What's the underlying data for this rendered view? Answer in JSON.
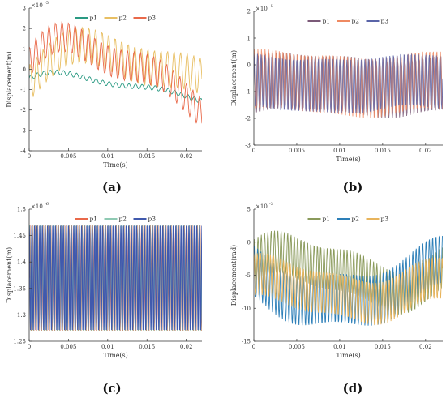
{
  "chart_data": [
    {
      "panel": "(a)",
      "type": "line",
      "caption": "(a)",
      "xlabel": "Time(s)",
      "ylabel": "Displacement(m)",
      "multiplier": "×10",
      "exponent": "-5",
      "xlim": [
        0,
        0.022
      ],
      "ylim": [
        -4,
        3
      ],
      "xticks": [
        0,
        0.005,
        0.01,
        0.015,
        0.02
      ],
      "xtick_labels": [
        "0",
        "0.005",
        "0.01",
        "0.015",
        "0.02"
      ],
      "yticks": [
        -4,
        -3,
        -2,
        -1,
        0,
        1,
        2,
        3
      ],
      "ytick_labels": [
        "-4",
        "-3",
        "-2",
        "-1",
        "0",
        "1",
        "2",
        "3"
      ],
      "legend_position": "top",
      "series": [
        {
          "name": "p1",
          "color": "#2a9a83",
          "amp": 0.12,
          "freq": 1200,
          "bias": -0.9,
          "env": [
            [
              -0.9,
              0.6,
              180,
              0.6
            ]
          ]
        },
        {
          "name": "p2",
          "color": "#e8bf63",
          "amp": 0.9,
          "freq": 1200,
          "bias": -0.7,
          "env": [
            [
              -0.7,
              1.7,
              150,
              0
            ]
          ]
        },
        {
          "name": "p3",
          "color": "#e9694a",
          "amp": 0.75,
          "freq": 1200,
          "bias": -0.3,
          "env": [
            [
              -0.3,
              1.6,
              190,
              0.3
            ]
          ]
        }
      ]
    },
    {
      "panel": "(b)",
      "type": "line",
      "caption": "(b)",
      "xlabel": "Time(s)",
      "ylabel": "Displacement(m)",
      "multiplier": "×10",
      "exponent": "-5",
      "xlim": [
        0,
        0.022
      ],
      "ylim": [
        -3,
        2
      ],
      "xticks": [
        0,
        0.005,
        0.01,
        0.015,
        0.02
      ],
      "xtick_labels": [
        "0",
        "0.005",
        "0.01",
        "0.015",
        "0.02"
      ],
      "yticks": [
        -3,
        -2,
        -1,
        0,
        1,
        2
      ],
      "ytick_labels": [
        "-3",
        "-2",
        "-1",
        "0",
        "1",
        "2"
      ],
      "legend_position": "top",
      "series": [
        {
          "name": "p1",
          "color": "#7b5a78",
          "amp": 1.05,
          "freq": 2400,
          "bias": -0.75,
          "env": [
            [
              -0.75,
              0.15,
              300,
              0
            ]
          ]
        },
        {
          "name": "p2",
          "color": "#ef8a62",
          "amp": 1.1,
          "freq": 2400,
          "bias": -0.7,
          "env": [
            [
              -0.7,
              0.15,
              300,
              1
            ]
          ]
        },
        {
          "name": "p3",
          "color": "#5a64a8",
          "amp": 1.0,
          "freq": 2400,
          "bias": -0.7,
          "env": [
            [
              -0.7,
              0.12,
              300,
              2
            ]
          ]
        }
      ]
    },
    {
      "panel": "(c)",
      "type": "line",
      "caption": "(c)",
      "xlabel": "Time(s)",
      "ylabel": "Displacement(m)",
      "multiplier": "×10",
      "exponent": "-6",
      "xlim": [
        0,
        0.022
      ],
      "ylim": [
        1.25,
        1.5
      ],
      "xticks": [
        0,
        0.005,
        0.01,
        0.015,
        0.02
      ],
      "xtick_labels": [
        "0",
        "0.005",
        "0.01",
        "0.015",
        "0.02"
      ],
      "yticks": [
        1.25,
        1.3,
        1.35,
        1.4,
        1.45,
        1.5
      ],
      "ytick_labels": [
        "1.25",
        "1.3",
        "1.35",
        "1.4",
        "1.45",
        "1.5"
      ],
      "legend_position": "top",
      "series": [
        {
          "name": "p1",
          "color": "#e9694a",
          "amp": 0.1,
          "freq": 3000,
          "bias": 1.37,
          "env": []
        },
        {
          "name": "p2",
          "color": "#8fcab3",
          "amp": 0.1,
          "freq": 3000,
          "bias": 1.37,
          "env": []
        },
        {
          "name": "p3",
          "color": "#4059ad",
          "amp": 0.1,
          "freq": 3000,
          "bias": 1.37,
          "env": []
        }
      ]
    },
    {
      "panel": "(d)",
      "type": "line",
      "caption": "(d)",
      "xlabel": "Time(s)",
      "ylabel": "Displacement(rad)",
      "multiplier": "×10",
      "exponent": "-3",
      "xlim": [
        0,
        0.022
      ],
      "ylim": [
        -15,
        5
      ],
      "xticks": [
        0,
        0.005,
        0.01,
        0.015,
        0.02
      ],
      "xtick_labels": [
        "0",
        "0.005",
        "0.01",
        "0.015",
        "0.02"
      ],
      "yticks": [
        -15,
        -10,
        -5,
        0,
        5
      ],
      "ytick_labels": [
        "-15",
        "-10",
        "-5",
        "0",
        "5"
      ],
      "legend_position": "top",
      "series": [
        {
          "name": "p1",
          "color": "#8a9a5b",
          "amp": 3.2,
          "freq": 2600,
          "bias": -4.5,
          "env": [
            [
              -4.5,
              2.5,
              260,
              0.5
            ]
          ]
        },
        {
          "name": "p2",
          "color": "#2d7fb8",
          "amp": 3.8,
          "freq": 2600,
          "bias": -6.5,
          "env": [
            [
              -6.5,
              3.0,
              230,
              2.5
            ]
          ]
        },
        {
          "name": "p3",
          "color": "#e8b45c",
          "amp": 3.2,
          "freq": 2600,
          "bias": -7.2,
          "env": [
            [
              -7.2,
              1.8,
              280,
              1.2
            ]
          ]
        }
      ]
    }
  ]
}
